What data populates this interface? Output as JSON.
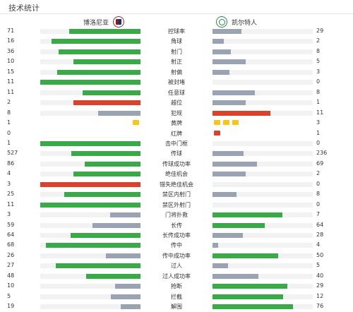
{
  "header": {
    "title": "技术统计"
  },
  "teams": {
    "home": "博洛尼亚",
    "away": "凯尔特人"
  },
  "colors": {
    "green": "#3aaa48",
    "gray": "#9aa3b2",
    "red": "#d9432b",
    "yellow": "#f5c518",
    "track": "#f2f2f2"
  },
  "stats": [
    {
      "label": "控球率",
      "home": "71",
      "away": "29",
      "hv": 71,
      "av": 29
    },
    {
      "label": "角球",
      "home": "16",
      "away": "2",
      "hv": 16,
      "av": 2
    },
    {
      "label": "射门",
      "home": "36",
      "away": "8",
      "hv": 36,
      "av": 8
    },
    {
      "label": "射正",
      "home": "10",
      "away": "5",
      "hv": 10,
      "av": 5
    },
    {
      "label": "射偏",
      "home": "15",
      "away": "3",
      "hv": 15,
      "av": 3
    },
    {
      "label": "被封堵",
      "home": "11",
      "away": "0",
      "hv": 11,
      "av": 0
    },
    {
      "label": "任意球",
      "home": "11",
      "away": "8",
      "hv": 11,
      "av": 8
    },
    {
      "label": "越位",
      "home": "2",
      "away": "1",
      "hv": 2,
      "av": 1
    },
    {
      "label": "犯规",
      "home": "8",
      "away": "11",
      "hv": 8,
      "av": 11
    },
    {
      "label": "黄牌",
      "home": "1",
      "away": "3",
      "hv": 1,
      "av": 3,
      "cards": "yellow"
    },
    {
      "label": "红牌",
      "home": "0",
      "away": "1",
      "hv": 0,
      "av": 1,
      "cards": "red"
    },
    {
      "label": "击中门框",
      "home": "1",
      "away": "0",
      "hv": 1,
      "av": 0
    },
    {
      "label": "传球",
      "home": "527",
      "away": "236",
      "hv": 527,
      "av": 236
    },
    {
      "label": "传球成功率",
      "home": "86",
      "away": "69",
      "hv": 86,
      "av": 69
    },
    {
      "label": "绝佳机会",
      "home": "4",
      "away": "2",
      "hv": 4,
      "av": 2
    },
    {
      "label": "错失绝佳机会",
      "home": "3",
      "away": "0",
      "hv": 3,
      "av": 0
    },
    {
      "label": "禁区内射门",
      "home": "25",
      "away": "8",
      "hv": 25,
      "av": 8
    },
    {
      "label": "禁区外射门",
      "home": "11",
      "away": "0",
      "hv": 11,
      "av": 0
    },
    {
      "label": "门将扑救",
      "home": "3",
      "away": "7",
      "hv": 3,
      "av": 7
    },
    {
      "label": "长传",
      "home": "59",
      "away": "64",
      "hv": 59,
      "av": 64
    },
    {
      "label": "长传成功率",
      "home": "64",
      "away": "28",
      "hv": 64,
      "av": 28
    },
    {
      "label": "传中",
      "home": "68",
      "away": "4",
      "hv": 68,
      "av": 4
    },
    {
      "label": "传中成功率",
      "home": "26",
      "away": "50",
      "hv": 26,
      "av": 50
    },
    {
      "label": "过人",
      "home": "27",
      "away": "5",
      "hv": 27,
      "av": 5
    },
    {
      "label": "过人成功率",
      "home": "48",
      "away": "40",
      "hv": 48,
      "av": 40
    },
    {
      "label": "抢断",
      "home": "10",
      "away": "29",
      "hv": 10,
      "av": 29
    },
    {
      "label": "拦截",
      "home": "5",
      "away": "12",
      "hv": 5,
      "av": 12
    },
    {
      "label": "解围",
      "home": "19",
      "away": "76",
      "hv": 19,
      "av": 76
    }
  ]
}
